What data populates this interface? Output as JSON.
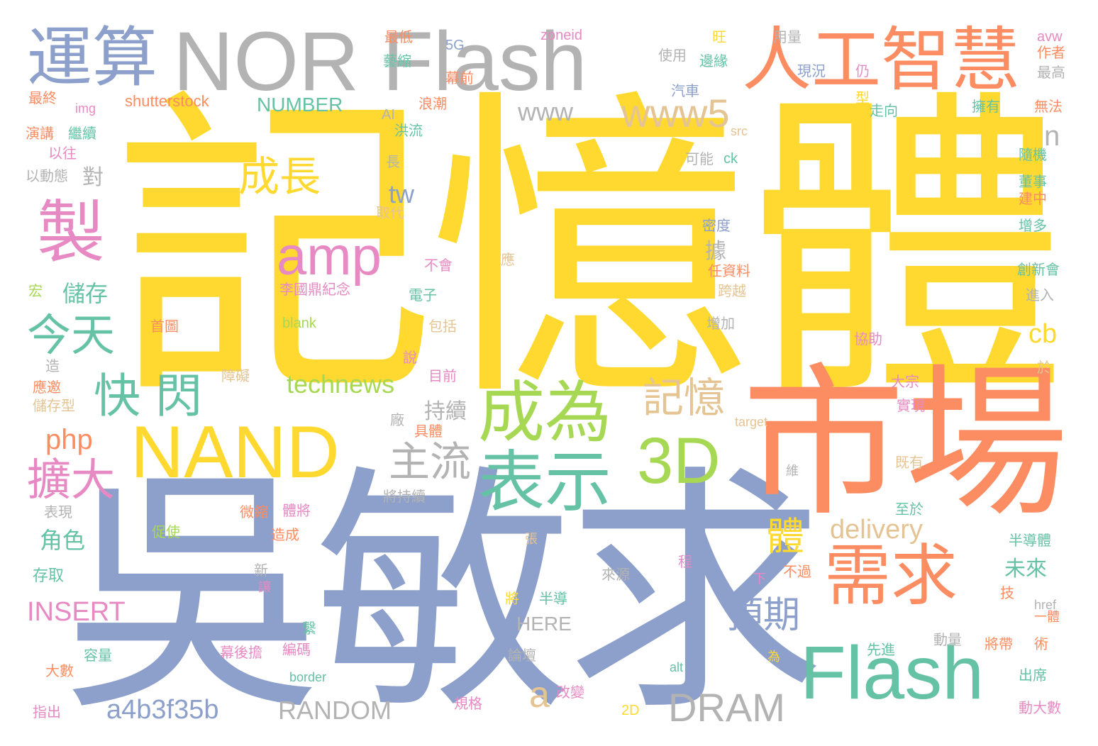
{
  "palette": {
    "yellow": "#ffd92f",
    "blue": "#8da0cb",
    "orange": "#fc8d62",
    "green": "#66c2a5",
    "pink": "#e78ac3",
    "lime": "#a6d854",
    "tan": "#e5c494",
    "gray": "#b3b3b3"
  },
  "words": {
    "w_jiyiti": "記憶體",
    "w_wumin": "吳敏求",
    "w_shichang": "市場",
    "w_norflash": "NOR Flash",
    "w_rengong": "人工智慧",
    "w_yunsuan": "運算",
    "w_nand": "NAND",
    "w_flash": "Flash",
    "w_xuqiu": "需求",
    "w_biaoshi": "表示",
    "w_chengwei": "成為",
    "w_3d": "3D",
    "w_amp": "amp",
    "w_zhi": "製",
    "w_www5": "www5",
    "w_chengzhang": "成長",
    "w_kuaishan": "快 閃",
    "w_jintian": "今天",
    "w_kuoda": "擴大",
    "w_jiyi": "記憶",
    "w_yuqi": "預期",
    "w_dram": "DRAM",
    "w_a4b": "a4b3f35b",
    "w_random": "RANDOM",
    "w_insert": "INSERT",
    "w_technews": "technews",
    "w_zhuliu": "主流",
    "w_delivery": "delivery",
    "w_ti": "體",
    "w_a": "a",
    "w_www": "www",
    "w_php": "php",
    "w_cb": "cb",
    "w_tw": "tw",
    "w_n": "n",
    "w_chucun": "儲存",
    "w_jiaose": "角色",
    "w_weilai": "未來",
    "w_chixu": "持續",
    "w_here": "HERE",
    "w_number": "NUMBER",
    "w_shutter": "shutterstock",
    "w_dui": "對",
    "w_ju": "據",
    "w_cunqu": "存取",
    "w_zuizhong": "最終",
    "w_img": "img",
    "w_yanjiang": "演講",
    "w_jixu": "繼續",
    "w_yiwang": "以往",
    "w_yidongtai": "以動態",
    "w_zuidi": "最低",
    "w_yisuo": "藝縮",
    "w_5g": "5G",
    "w_zoneid": "zoneid",
    "w_wang": "旺",
    "w_yongliang": "用量",
    "w_avw": "avw",
    "w_zuozhe": "作者",
    "w_zuigao": "最高",
    "w_shiyong": "使用",
    "w_bianyuan": "邊緣",
    "w_xiankuang": "現況",
    "w_reng": "仍",
    "w_muqian": "幕前",
    "w_langchao": "浪潮",
    "w_xing": "型",
    "w_qiche": "汽車",
    "w_zouxiang": "走向",
    "w_yongyou": "擁有",
    "w_wufa": "無法",
    "w_ai": "AI",
    "w_hongliu": "洪流",
    "w_src": "src",
    "w_chang": "長",
    "w_keneng": "可能",
    "w_ck": "ck",
    "w_suiji": "隨機",
    "w_dongshi": "董事",
    "w_jianzhong": "建中",
    "w_qudai": "取代",
    "w_midu": "密度",
    "w_zengduo": "增多",
    "w_buhui": "不會",
    "w_ying": "應",
    "w_renziliao": "任資料",
    "w_chuangxinhui": "創新會",
    "w_hong": "宏",
    "w_liguoding": "李國鼎紀念",
    "w_dianzi": "電子",
    "w_kuayue": "跨越",
    "w_jinru": "進入",
    "w_shoutu": "首圖",
    "w_blank": "blank",
    "w_baokuo": "包括",
    "w_zengjia": "增加",
    "w_xiezhu": "協助",
    "w_shuo": "說",
    "w_zao": "造",
    "w_mubiao": "目前",
    "w_yu": "於",
    "w_yingyao": "應邀",
    "w_zhangai": "障礙",
    "w_dazong": "大宗",
    "w_chucunxing": "儲存型",
    "w_shixian": "實現",
    "w_chang2": "廠",
    "w_juti": "具體",
    "w_target": "target",
    "w_jiyou": "既有",
    "w_wei": "維",
    "w_jiangchixu": "將持續",
    "w_biaoxian": "表現",
    "w_weisuo": "微縮",
    "w_tijiang": "體將",
    "w_zhiyu": "至於",
    "w_cujin": "促使",
    "w_zaocheng": "造成",
    "w_zhang": "張",
    "w_bandaoti": "半導體",
    "w_xin": "新",
    "w_cheng": "程",
    "w_laiyuan": "來源",
    "w_xia": "下",
    "w_buguo": "不過",
    "w_rang": "讓",
    "w_jiang": "將",
    "w_bandao": "半導",
    "w_ji": "技",
    "w_href": "href",
    "w_yiti": "一體",
    "w_fan": "繫",
    "w_muhou": "幕後擔",
    "w_bianma": "編碼",
    "w_xianjin": "先進",
    "w_dongliang": "動量",
    "w_jiangdai": "將帶",
    "w_shu": "術",
    "w_rongliang": "容量",
    "w_luntan": "論壇",
    "w_wei2": "為",
    "w_dashu": "大數",
    "w_alt": "alt",
    "w_chuxi": "出席",
    "w_border": "border",
    "w_gaibian": "改變",
    "w_zhichu": "指出",
    "w_guige": "規格",
    "w_2d": "2D",
    "w_dongdashu": "動大數"
  }
}
